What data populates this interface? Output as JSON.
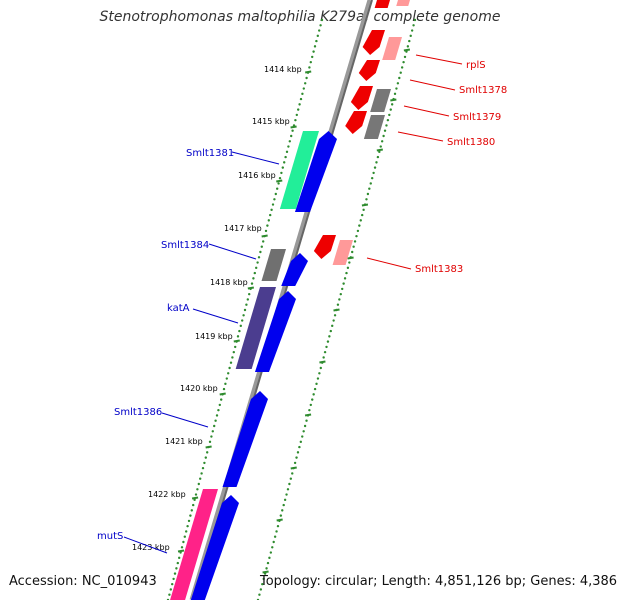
{
  "title": "Stenotrophomonas maltophilia K279a, complete genome",
  "accession": "Accession: NC_010943",
  "topology": "Topology: circular; Length: 4,851,126 bp; Genes: 4,386",
  "colors": {
    "forward_label": "#0000c8",
    "reverse_label": "#e00000",
    "backbone": "#777777",
    "tick": "#2e8b2e"
  },
  "kbp_ticks": [
    "1414 kbp",
    "1415 kbp",
    "1416 kbp",
    "1417 kbp",
    "1418 kbp",
    "1419 kbp",
    "1420 kbp",
    "1421 kbp",
    "1422 kbp",
    "1423 kbp"
  ],
  "forward_features": [
    {
      "label": "Smlt1381",
      "color": "#22ee99"
    },
    {
      "label": "Smlt1384",
      "color": "#707070"
    },
    {
      "label": "katA",
      "color": "#4b3d8f"
    },
    {
      "label": "Smlt1386",
      "color": ""
    },
    {
      "label": "mutS",
      "color": "#ff2288"
    }
  ],
  "reverse_features": [
    {
      "label": "rplS",
      "color": "#ff9999"
    },
    {
      "label": "Smlt1378",
      "color": "#777777"
    },
    {
      "label": "Smlt1379",
      "color": "#777777"
    },
    {
      "label": "Smlt1380",
      "color": ""
    },
    {
      "label": "Smlt1383",
      "color": "#ff9999"
    }
  ]
}
